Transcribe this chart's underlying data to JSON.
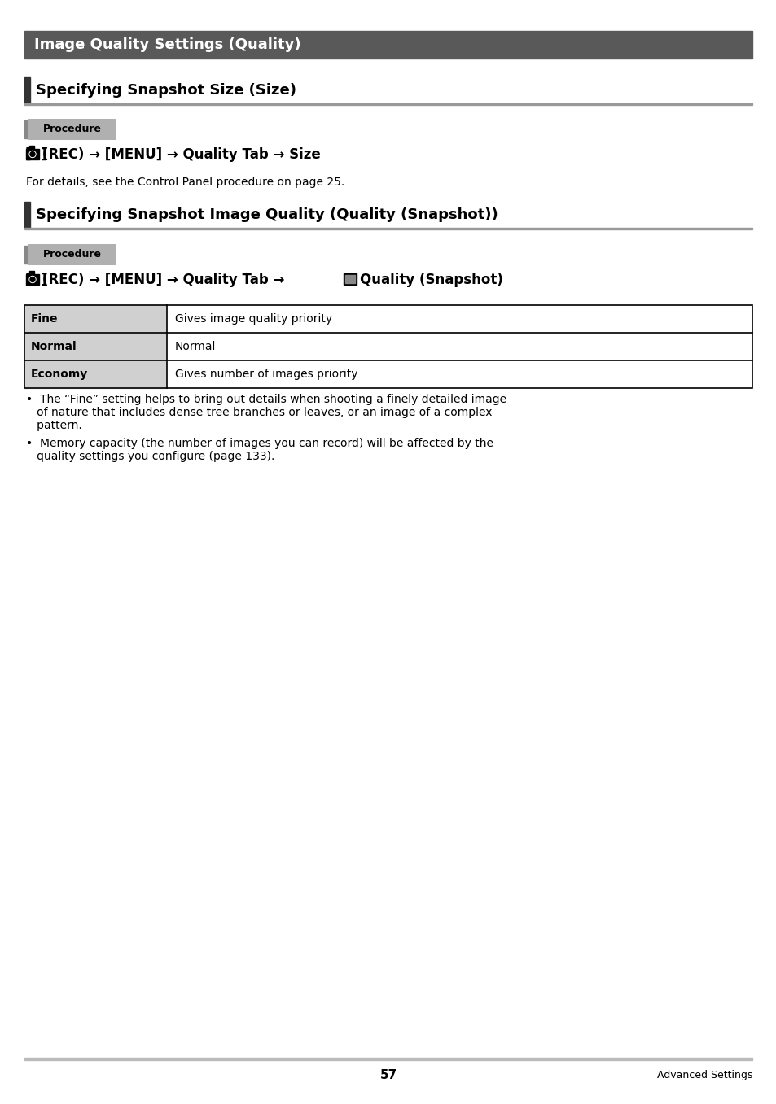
{
  "title_bar_text": "Image Quality Settings (Quality)",
  "title_bar_bg": "#595959",
  "title_bar_fg": "#ffffff",
  "section1_title": "Specifying Snapshot Size (Size)",
  "section2_title": "Specifying Snapshot Image Quality (Quality (Snapshot))",
  "section_bar_color": "#333333",
  "procedure_text": "Procedure",
  "procedure_bg": "#b0b0b0",
  "procedure_bar_color": "#777777",
  "cmd1_parts": [
    "[■] (REC) → [MENU] → Quality Tab → Size"
  ],
  "cmd1_note": "For details, see the Control Panel procedure on page 25.",
  "cmd2_pre": "[■] (REC) → [MENU] → Quality Tab →",
  "cmd2_post": " Quality (Snapshot)",
  "table_headers": [
    "Fine",
    "Normal",
    "Economy"
  ],
  "table_values": [
    "Gives image quality priority",
    "Normal",
    "Gives number of images priority"
  ],
  "table_col1_bg": "#d0d0d0",
  "table_border": "#000000",
  "bullet1_line1": "•  The “Fine” setting helps to bring out details when shooting a finely detailed image",
  "bullet1_line2": "   of nature that includes dense tree branches or leaves, or an image of a complex",
  "bullet1_line3": "   pattern.",
  "bullet2_line1": "•  Memory capacity (the number of images you can record) will be affected by the",
  "bullet2_line2": "   quality settings you configure (page 133).",
  "footer_page": "57",
  "footer_right": "Advanced Settings",
  "footer_line_color": "#bbbbbb",
  "bg_color": "#ffffff",
  "body_text_color": "#000000",
  "underline_color": "#999999"
}
